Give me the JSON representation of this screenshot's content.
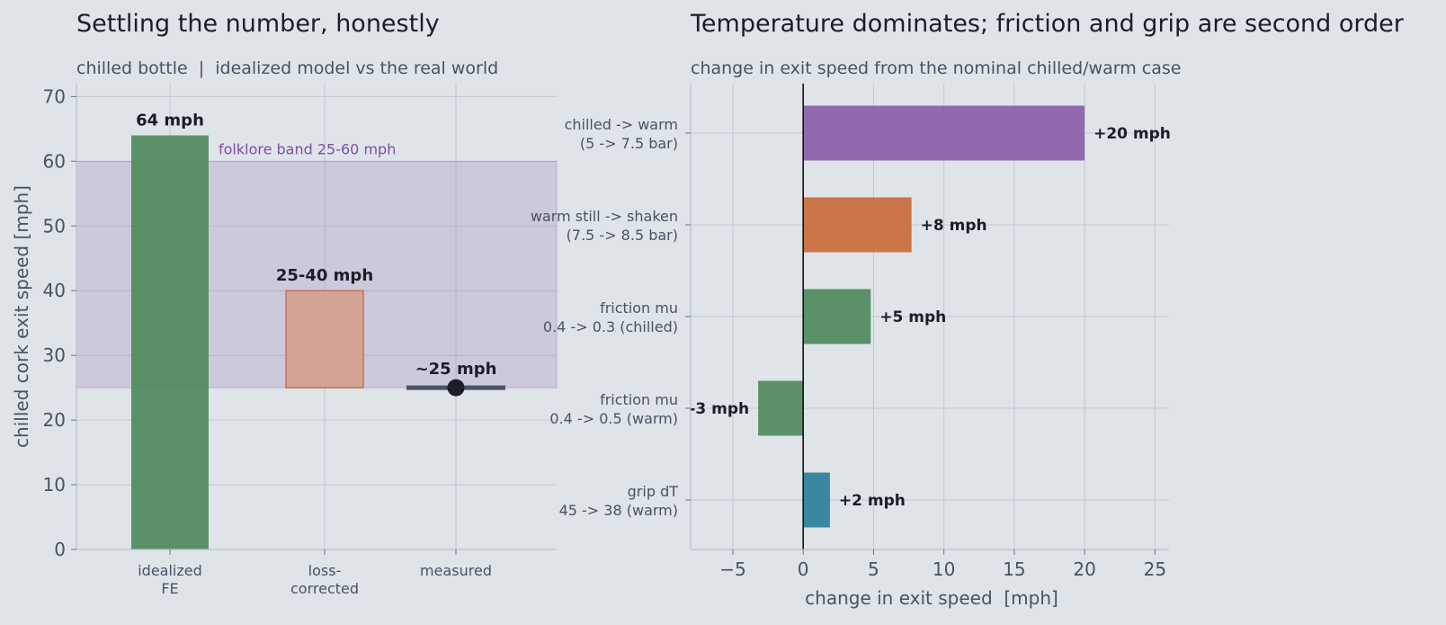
{
  "chart_data": [
    {
      "type": "bar",
      "title": "Settling the number, honestly",
      "subtitle": "chilled bottle  |  idealized model vs the real world",
      "ylabel": "chilled cork exit speed  [mph]",
      "ylim": [
        0,
        72
      ],
      "yticks": [
        0,
        10,
        20,
        30,
        40,
        50,
        60,
        70
      ],
      "grid": true,
      "categories": [
        "idealized\nFE",
        "loss-\ncorrected",
        "measured"
      ],
      "bars": [
        {
          "category": "idealized\nFE",
          "low": 0,
          "high": 64,
          "label": "64 mph",
          "color": "#4f8a5c"
        },
        {
          "category": "loss-\ncorrected",
          "low": 25,
          "high": 40,
          "label": "25-40 mph",
          "color": "#d49c88",
          "edge": "#c8705a"
        }
      ],
      "points": [
        {
          "category": "measured",
          "value": 25,
          "label": "~25 mph",
          "color": "#1b1e26"
        }
      ],
      "band": {
        "low": 25,
        "high": 60,
        "label": "folklore band 25-60 mph",
        "color": "#8a6bb0",
        "text_color": "#7d4ea8"
      }
    },
    {
      "type": "bar",
      "orientation": "horizontal",
      "title": "Temperature dominates; friction and grip are second order",
      "subtitle": "change in exit speed from the nominal chilled/warm case",
      "xlabel": "change in exit speed  [mph]",
      "xlim": [
        -8,
        26
      ],
      "xticks": [
        -5,
        0,
        5,
        10,
        15,
        20,
        25
      ],
      "xtick_labels": [
        "−5",
        "0",
        "5",
        "10",
        "15",
        "20",
        "25"
      ],
      "grid": true,
      "categories": [
        "chilled -> warm\n(5 -> 7.5 bar)",
        "warm still -> shaken\n(7.5 -> 8.5 bar)",
        "friction mu\n0.4 -> 0.3 (chilled)",
        "friction mu\n0.4 -> 0.5 (warm)",
        "grip dT\n45 -> 38 (warm)"
      ],
      "values": [
        20,
        7.7,
        4.8,
        -3.2,
        1.9
      ],
      "labels": [
        "+20 mph",
        "+8 mph",
        "+5 mph",
        "-3 mph",
        "+2 mph"
      ],
      "colors": [
        "#8a5ea8",
        "#c96b3b",
        "#4f8a5c",
        "#4f8a5c",
        "#2a7f99"
      ]
    }
  ]
}
